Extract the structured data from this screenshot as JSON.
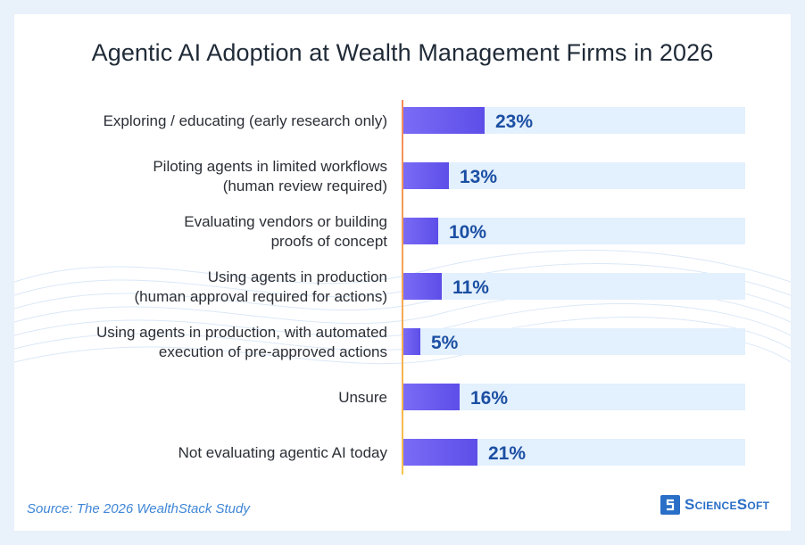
{
  "title": "Agentic AI Adoption at Wealth Management Firms in 2026",
  "source": "Source: The 2026 WealthStack Study",
  "brand": {
    "name": "ScienceSoft"
  },
  "colors": {
    "bar_start": "#7b6cf6",
    "bar_end": "#5d4ee8",
    "track": "#e3f0fd",
    "value_text": "#1b4fa3",
    "axis": "#f3a35a"
  },
  "chart_data": {
    "type": "bar",
    "orientation": "horizontal",
    "categories": [
      [
        "Exploring / educating (early research only)"
      ],
      [
        "Piloting agents in limited workflows",
        "(human review required)"
      ],
      [
        "Evaluating vendors or building",
        "proofs of concept"
      ],
      [
        "Using agents in production",
        "(human approval required for actions)"
      ],
      [
        "Using agents in production, with automated",
        "execution of pre-approved actions"
      ],
      [
        "Unsure"
      ],
      [
        "Not evaluating agentic AI today"
      ]
    ],
    "values": [
      23,
      13,
      10,
      11,
      5,
      16,
      21
    ],
    "value_labels": [
      "23%",
      "13%",
      "10%",
      "11%",
      "5%",
      "16%",
      "21%"
    ],
    "unit": "%",
    "xlim": [
      0,
      100
    ],
    "grid": false,
    "legend": "none"
  }
}
